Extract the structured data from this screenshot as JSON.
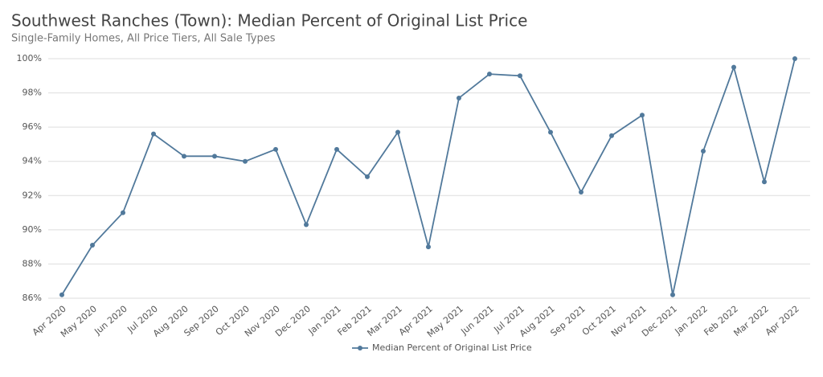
{
  "chart_data": {
    "type": "line",
    "title": "Southwest Ranches (Town): Median Percent of Original List Price",
    "subtitle": "Single-Family Homes, All Price Tiers, All Sale Types",
    "categories": [
      "Apr 2020",
      "May 2020",
      "Jun 2020",
      "Jul 2020",
      "Aug 2020",
      "Sep 2020",
      "Oct 2020",
      "Nov 2020",
      "Dec 2020",
      "Jan 2021",
      "Feb 2021",
      "Mar 2021",
      "Apr 2021",
      "May 2021",
      "Jun 2021",
      "Jul 2021",
      "Aug 2021",
      "Sep 2021",
      "Oct 2021",
      "Nov 2021",
      "Dec 2021",
      "Jan 2022",
      "Feb 2022",
      "Mar 2022",
      "Apr 2022"
    ],
    "series": [
      {
        "name": "Median Percent of Original List Price",
        "color": "#51799b",
        "values": [
          86.2,
          89.1,
          91.0,
          95.6,
          94.3,
          94.3,
          94.0,
          94.7,
          90.3,
          94.7,
          93.1,
          95.7,
          89.0,
          97.7,
          99.1,
          99.0,
          95.7,
          92.2,
          95.5,
          96.7,
          86.2,
          94.6,
          99.5,
          92.8,
          100.0
        ]
      }
    ],
    "ylim": [
      86,
      100
    ],
    "yticks": [
      {
        "value": 86,
        "label": "86%"
      },
      {
        "value": 88,
        "label": "88%"
      },
      {
        "value": 90,
        "label": "90%"
      },
      {
        "value": 92,
        "label": "92%"
      },
      {
        "value": 94,
        "label": "94%"
      },
      {
        "value": 96,
        "label": "96%"
      },
      {
        "value": 98,
        "label": "98%"
      },
      {
        "value": 100,
        "label": "100%"
      }
    ],
    "grid": true,
    "legend": "bottom"
  }
}
